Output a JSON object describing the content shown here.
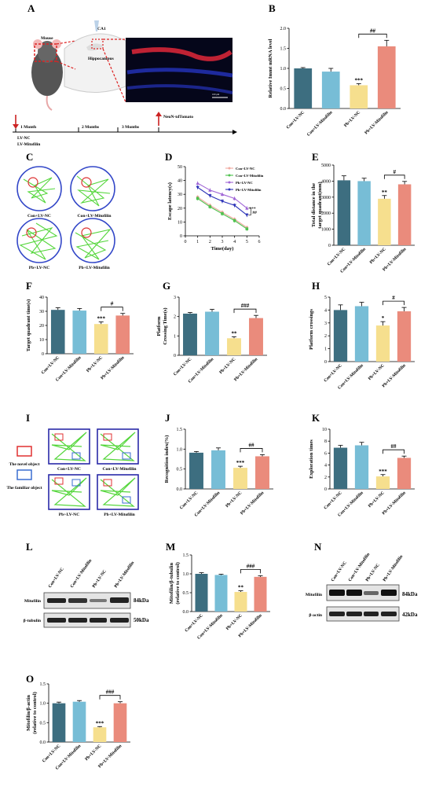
{
  "panels": {
    "A": {
      "letter": "A",
      "mouse_label": "Mouse",
      "ca1_label": "CA1",
      "hippocampus_label": "Hippocampus",
      "timeline": [
        "1 Month",
        "2 Months",
        "3 Months"
      ],
      "injection": [
        "LV-NC",
        "LV-Mitofilin"
      ],
      "endpoint": "NeuN-tdTomato",
      "scale_text": "100 μm"
    },
    "C": {
      "letter": "C",
      "groups": [
        "Con+LV-NC",
        "Con+LV-Mitofilin",
        "Pb+LV-NC",
        "Pb+LV-Mitofilin"
      ]
    },
    "I": {
      "letter": "I",
      "novel": "The novel object",
      "familiar": "The familiar object",
      "groups": [
        "Con+LV-NC",
        "Con+LV-Mitofilin",
        "Pb+LV-NC",
        "Pb+LV-Mitofilin"
      ]
    },
    "L": {
      "letter": "L",
      "lanes": [
        "Con+LV-NC",
        "Con+LV-Mitofilin",
        "Pb+LV-NC",
        "Pb+LV-Mitofilin"
      ],
      "bands": [
        "Mitofilin",
        "β-tubulin"
      ],
      "sizes": [
        "84kDa",
        "50kDa"
      ]
    },
    "N": {
      "letter": "N",
      "lanes": [
        "Con+LV-NC",
        "Con+LV-Mitofilin",
        "Pb+LV-NC",
        "Pb+LV-Mitofilin"
      ],
      "bands": [
        "Mitofilin",
        "β-actin"
      ],
      "sizes": [
        "84kDa",
        "42kDa"
      ]
    }
  },
  "colors": {
    "con_nc": "#3d6e80",
    "con_mito": "#77bdd6",
    "pb_nc": "#f6df8e",
    "pb_mito": "#ea8b7c",
    "track": "#55d63c"
  },
  "chart_data": [
    {
      "id": "B",
      "type": "bar",
      "categories": [
        "Con+LV-NC",
        "Con+LV-Mitofilin",
        "Pb+LV-NC",
        "Pb+LV-Mitofilin"
      ],
      "values": [
        1.0,
        0.92,
        0.58,
        1.55
      ],
      "errors": [
        0.02,
        0.08,
        0.04,
        0.15
      ],
      "ylabel": "Relative Immt mRNA level",
      "ylim": [
        0,
        2.0
      ],
      "yticks": [
        "0.0",
        "0.5",
        "1.0",
        "1.5",
        "2.0"
      ],
      "stars": "***",
      "hash": "##"
    },
    {
      "id": "D",
      "type": "line",
      "x": [
        1,
        2,
        3,
        4,
        5
      ],
      "xticks": [
        "0",
        "1",
        "2",
        "3",
        "4",
        "5",
        "6"
      ],
      "xlim": [
        0,
        6
      ],
      "xlabel": "Time(day)",
      "ylabel": "Escape latency(s)",
      "ylim": [
        0,
        50
      ],
      "yticks": [
        "0",
        "10",
        "20",
        "30",
        "40",
        "50"
      ],
      "series": [
        {
          "name": "Con+LV-NC",
          "values": [
            28,
            22,
            17,
            12,
            6
          ],
          "color": "#f0a9a0"
        },
        {
          "name": "Con+LV-Mitofilin",
          "values": [
            27,
            21,
            16,
            11,
            5
          ],
          "color": "#4fc24f"
        },
        {
          "name": "Pb+LV-NC",
          "values": [
            38,
            33,
            30,
            27,
            20
          ],
          "color": "#a066d6"
        },
        {
          "name": "Pb+LV-Mitofilin",
          "values": [
            35,
            29,
            25,
            22,
            15
          ],
          "color": "#2b32b8"
        }
      ],
      "stars": "***",
      "hash": "##"
    },
    {
      "id": "E",
      "type": "bar",
      "categories": [
        "Con+LV-NC",
        "Con+LV-Mitofilin",
        "Pb+LV-NC",
        "Pb+LV-Mitofilin"
      ],
      "values": [
        4050,
        4000,
        2900,
        3800
      ],
      "errors": [
        280,
        180,
        200,
        180
      ],
      "ylabel": "Total distance in the target quadrant(mm)",
      "ylim": [
        0,
        5000
      ],
      "yticks": [
        "0",
        "1000",
        "2000",
        "3000",
        "4000",
        "5000"
      ],
      "stars": "**",
      "hash": "#"
    },
    {
      "id": "F",
      "type": "bar",
      "categories": [
        "Con+LV-NC",
        "Con+LV-Mitofilin",
        "Pb+LV-NC",
        "Pb+LV-Mitofilin"
      ],
      "values": [
        31,
        30.5,
        21,
        27
      ],
      "errors": [
        1.5,
        1.5,
        1.5,
        1.5
      ],
      "ylabel": "Target quadrant time(s)",
      "ylim": [
        0,
        40
      ],
      "yticks": [
        "0",
        "10",
        "20",
        "30",
        "40"
      ],
      "stars": "***",
      "hash": "#"
    },
    {
      "id": "G",
      "type": "bar",
      "categories": [
        "Con+LV-NC",
        "Con+LV-Mitofilin",
        "Pb+LV-NC",
        "Pb+LV-Mitofilin"
      ],
      "values": [
        2.15,
        2.25,
        0.88,
        1.92
      ],
      "errors": [
        0.06,
        0.12,
        0.08,
        0.14
      ],
      "ylabel": "Platform Crossing Time(s)",
      "ylim": [
        0,
        3
      ],
      "yticks": [
        "0",
        "1",
        "2",
        "3"
      ],
      "stars": "**",
      "hash": "###"
    },
    {
      "id": "H",
      "type": "bar",
      "categories": [
        "Con+LV-NC",
        "Con+LV-Mitofilin",
        "Pb+LV-NC",
        "Pb+LV-Mitofilin"
      ],
      "values": [
        4.0,
        4.3,
        2.8,
        3.9
      ],
      "errors": [
        0.4,
        0.3,
        0.3,
        0.3
      ],
      "ylabel": "Platform crossings",
      "ylim": [
        0,
        5
      ],
      "yticks": [
        "0",
        "1",
        "2",
        "3",
        "4",
        "5"
      ],
      "stars": "*",
      "hash": "#"
    },
    {
      "id": "J",
      "type": "bar",
      "categories": [
        "Con+LV-NC",
        "Con+LV-Mitofilin",
        "Pb+LV-NC",
        "Pb+LV-Mitofilin"
      ],
      "values": [
        0.91,
        0.97,
        0.53,
        0.82
      ],
      "errors": [
        0.03,
        0.06,
        0.04,
        0.04
      ],
      "ylabel": "Recognition index(%)",
      "ylim": [
        0,
        1.5
      ],
      "yticks": [
        "0.0",
        "0.5",
        "1.0",
        "1.5"
      ],
      "stars": "***",
      "hash": "##"
    },
    {
      "id": "K",
      "type": "bar",
      "categories": [
        "Con+LV-NC",
        "Con+LV-Mitofilin",
        "Pb+LV-NC",
        "Pb+LV-Mitofilin"
      ],
      "values": [
        6.9,
        7.3,
        2.1,
        5.2
      ],
      "errors": [
        0.4,
        0.5,
        0.3,
        0.3
      ],
      "ylabel": "Exploration times",
      "ylim": [
        0,
        10
      ],
      "yticks": [
        "0",
        "2",
        "4",
        "6",
        "8",
        "10"
      ],
      "stars": "***",
      "hash": "##"
    },
    {
      "id": "M",
      "type": "bar",
      "categories": [
        "Con+LV-NC",
        "Con+LV-Mitofilin",
        "Pb+LV-NC",
        "Pb+LV-Mitofilin"
      ],
      "values": [
        1.0,
        0.97,
        0.52,
        0.92
      ],
      "errors": [
        0.03,
        0.02,
        0.03,
        0.03
      ],
      "ylabel": "Mitofilin/β-tubulin (relative to control)",
      "ylim": [
        0,
        1.5
      ],
      "yticks": [
        "0.0",
        "0.5",
        "1.0",
        "1.5"
      ],
      "stars": "**",
      "hash": "###"
    },
    {
      "id": "O",
      "type": "bar",
      "categories": [
        "Con+LV-NC",
        "Con+LV-Mitofilin",
        "Pb+LV-NC",
        "Pb+LV-Mitofilin"
      ],
      "values": [
        1.0,
        1.04,
        0.38,
        1.0
      ],
      "errors": [
        0.03,
        0.03,
        0.02,
        0.04
      ],
      "ylabel": "Mitofilin/β-actin (relative to control)",
      "ylim": [
        0,
        1.5
      ],
      "yticks": [
        "0.0",
        "0.5",
        "1.0",
        "1.5"
      ],
      "stars": "***",
      "hash": "###"
    }
  ]
}
